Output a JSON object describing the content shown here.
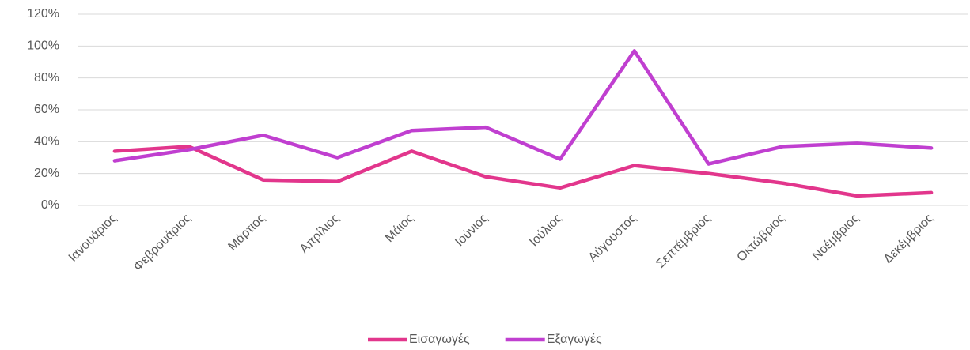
{
  "chart_data": {
    "type": "line",
    "categories": [
      "Ιανουάριος",
      "Φεβρουάριος",
      "Μάρτιος",
      "Απρίλιος",
      "Μάιος",
      "Ιούνιος",
      "Ιούλιος",
      "Αύγουστος",
      "Σεπτέμβριος",
      "Οκτώβριος",
      "Νοέμβριος",
      "Δεκέμβριος"
    ],
    "series": [
      {
        "name": "Εισαγωγές",
        "color": "#e2368c",
        "values": [
          34,
          37,
          16,
          15,
          34,
          18,
          11,
          25,
          20,
          14,
          6,
          8
        ]
      },
      {
        "name": "Εξαγωγές",
        "color": "#c03fd0",
        "values": [
          28,
          35,
          44,
          30,
          47,
          49,
          29,
          97,
          26,
          37,
          39,
          36
        ]
      }
    ],
    "ylim": [
      0,
      120
    ],
    "yticks": [
      {
        "value": 0,
        "label": "0%"
      },
      {
        "value": 20,
        "label": "20%"
      },
      {
        "value": 40,
        "label": "40%"
      },
      {
        "value": 60,
        "label": "60%"
      },
      {
        "value": 80,
        "label": "80%"
      },
      {
        "value": 100,
        "label": "100%"
      },
      {
        "value": 120,
        "label": "120%"
      }
    ],
    "grid": true,
    "legend": "bottom"
  }
}
